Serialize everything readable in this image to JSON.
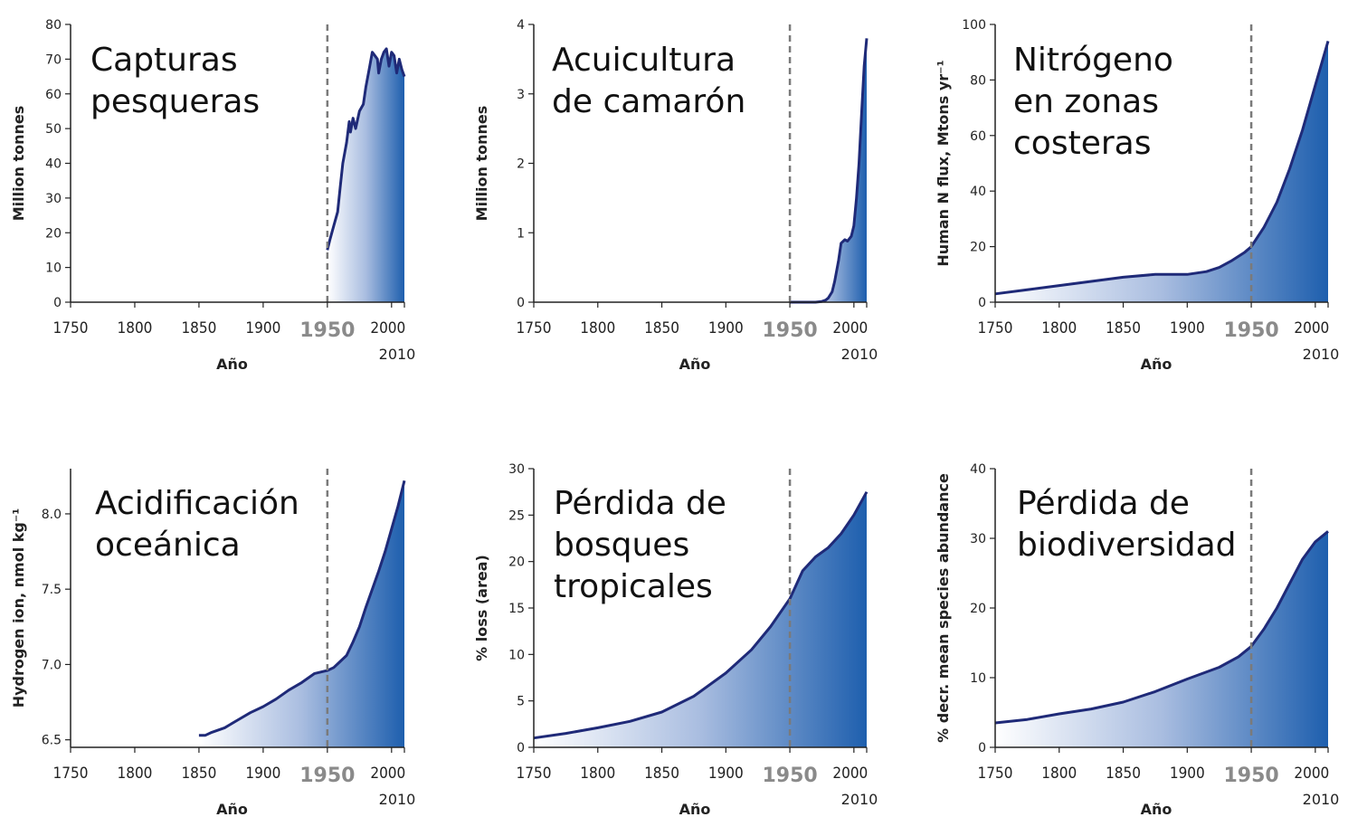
{
  "x_axis_title": "Año",
  "marker_year": 1950,
  "colors": {
    "line": "#1f2a78",
    "fill_light": "#ffffff",
    "fill_dark": "#1e5fae",
    "marker": "#7a7a7a",
    "axis": "#222222"
  },
  "chart_data": [
    {
      "type": "area",
      "title_lines": [
        "Capturas",
        "pesqueras"
      ],
      "ylabel": "Million tonnes",
      "xlabel": "Año",
      "xlim": [
        1750,
        2010
      ],
      "ylim": [
        0,
        80
      ],
      "xticks": [
        1750,
        1800,
        1850,
        1900,
        1950,
        2000,
        2010
      ],
      "yticks": [
        0,
        10,
        20,
        30,
        40,
        50,
        60,
        70,
        80
      ],
      "x": [
        1950,
        1952,
        1955,
        1958,
        1960,
        1962,
        1965,
        1967,
        1968,
        1970,
        1972,
        1975,
        1978,
        1980,
        1983,
        1985,
        1987,
        1989,
        1990,
        1992,
        1994,
        1996,
        1998,
        2000,
        2002,
        2004,
        2006,
        2008,
        2010
      ],
      "y": [
        15,
        18,
        22,
        26,
        33,
        40,
        46,
        52,
        49,
        53,
        50,
        55,
        57,
        62,
        68,
        72,
        71,
        70,
        66,
        70,
        72,
        73,
        68,
        72,
        71,
        66,
        70,
        67,
        65
      ]
    },
    {
      "type": "area",
      "title_lines": [
        "Acuicultura",
        "de camarón"
      ],
      "ylabel": "Million tonnes",
      "xlabel": "Año",
      "xlim": [
        1750,
        2010
      ],
      "ylim": [
        0,
        4
      ],
      "xticks": [
        1750,
        1800,
        1850,
        1900,
        1950,
        2000,
        2010
      ],
      "yticks": [
        0,
        1,
        2,
        3,
        4
      ],
      "x": [
        1950,
        1960,
        1970,
        1975,
        1978,
        1980,
        1983,
        1985,
        1988,
        1990,
        1993,
        1995,
        1998,
        2000,
        2002,
        2004,
        2006,
        2008,
        2010
      ],
      "y": [
        0,
        0,
        0,
        0.01,
        0.03,
        0.06,
        0.15,
        0.3,
        0.6,
        0.85,
        0.9,
        0.88,
        0.95,
        1.1,
        1.5,
        2.0,
        2.7,
        3.4,
        3.8
      ]
    },
    {
      "type": "area",
      "title_lines": [
        "Nitrógeno",
        "en zonas",
        "costeras"
      ],
      "ylabel": "Human N flux, Mtons yr⁻¹",
      "xlabel": "Año",
      "xlim": [
        1750,
        2010
      ],
      "ylim": [
        0,
        100
      ],
      "xticks": [
        1750,
        1800,
        1850,
        1900,
        1950,
        2000,
        2010
      ],
      "yticks": [
        0,
        20,
        40,
        60,
        80,
        100
      ],
      "x": [
        1750,
        1775,
        1800,
        1825,
        1850,
        1875,
        1900,
        1915,
        1925,
        1935,
        1945,
        1950,
        1960,
        1970,
        1980,
        1990,
        2000,
        2010
      ],
      "y": [
        3,
        4.5,
        6,
        7.5,
        9,
        10,
        10,
        11,
        12.5,
        15,
        18,
        20,
        27,
        36,
        48,
        62,
        78,
        94
      ]
    },
    {
      "type": "area",
      "title_lines": [
        "Acidificación",
        "oceánica"
      ],
      "ylabel": "Hydrogen ion, nmol kg⁻¹",
      "xlabel": "Año",
      "xlim": [
        1750,
        2010
      ],
      "ylim": [
        6.45,
        8.3
      ],
      "xticks": [
        1750,
        1800,
        1850,
        1900,
        1950,
        2000,
        2010
      ],
      "yticks": [
        6.5,
        7.0,
        7.5,
        8.0
      ],
      "x": [
        1850,
        1855,
        1860,
        1870,
        1880,
        1890,
        1900,
        1910,
        1920,
        1930,
        1940,
        1950,
        1955,
        1960,
        1965,
        1970,
        1975,
        1980,
        1985,
        1990,
        1995,
        2000,
        2005,
        2010
      ],
      "y": [
        6.53,
        6.53,
        6.55,
        6.58,
        6.63,
        6.68,
        6.72,
        6.77,
        6.83,
        6.88,
        6.94,
        6.96,
        6.98,
        7.02,
        7.06,
        7.15,
        7.25,
        7.38,
        7.5,
        7.62,
        7.75,
        7.9,
        8.05,
        8.22
      ]
    },
    {
      "type": "area",
      "title_lines": [
        "Pérdida de",
        "bosques",
        "tropicales"
      ],
      "ylabel": "% loss (area)",
      "xlabel": "Año",
      "xlim": [
        1750,
        2010
      ],
      "ylim": [
        0,
        30
      ],
      "xticks": [
        1750,
        1800,
        1850,
        1900,
        1950,
        2000,
        2010
      ],
      "yticks": [
        0,
        5,
        10,
        15,
        20,
        25,
        30
      ],
      "x": [
        1750,
        1775,
        1800,
        1825,
        1850,
        1875,
        1900,
        1920,
        1935,
        1950,
        1960,
        1970,
        1980,
        1990,
        2000,
        2010
      ],
      "y": [
        1,
        1.5,
        2.1,
        2.8,
        3.8,
        5.5,
        8,
        10.5,
        13,
        16,
        19,
        20.5,
        21.5,
        23,
        25,
        27.5
      ]
    },
    {
      "type": "area",
      "title_lines": [
        "Pérdida de",
        "biodiversidad"
      ],
      "ylabel": "% decr. mean species abundance",
      "xlabel": "Año",
      "xlim": [
        1750,
        2010
      ],
      "ylim": [
        0,
        40
      ],
      "xticks": [
        1750,
        1800,
        1850,
        1900,
        1950,
        2000,
        2010
      ],
      "yticks": [
        0,
        10,
        20,
        30,
        40
      ],
      "x": [
        1750,
        1775,
        1800,
        1825,
        1850,
        1875,
        1900,
        1925,
        1940,
        1950,
        1960,
        1970,
        1980,
        1990,
        2000,
        2010
      ],
      "y": [
        3.5,
        4,
        4.8,
        5.5,
        6.5,
        8,
        9.8,
        11.5,
        13,
        14.5,
        17,
        20,
        23.5,
        27,
        29.5,
        31
      ]
    }
  ]
}
